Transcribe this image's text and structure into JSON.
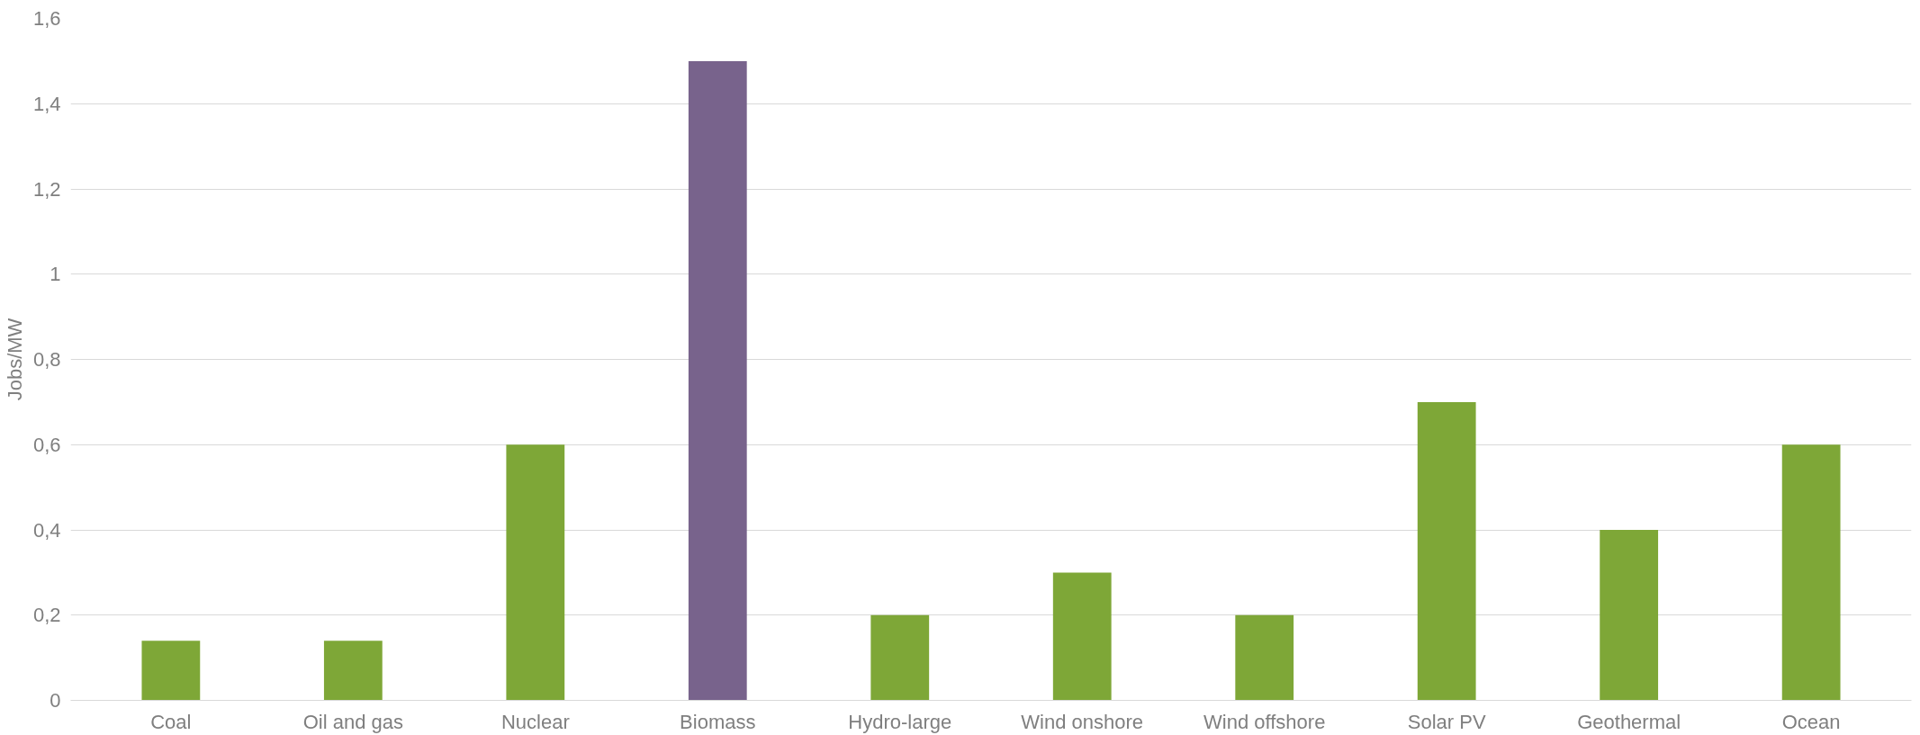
{
  "chart_data": {
    "type": "bar",
    "ylabel": "Jobs/MW",
    "categories": [
      "Coal",
      "Oil and gas",
      "Nuclear",
      "Biomass",
      "Hydro-large",
      "Wind onshore",
      "Wind offshore",
      "Solar PV",
      "Geothermal",
      "Ocean"
    ],
    "values": [
      0.14,
      0.14,
      0.6,
      1.5,
      0.2,
      0.3,
      0.2,
      0.7,
      0.4,
      0.6
    ],
    "colors": [
      "#7ea737",
      "#7ea737",
      "#7ea737",
      "#78638c",
      "#7ea737",
      "#7ea737",
      "#7ea737",
      "#7ea737",
      "#7ea737",
      "#7ea737"
    ],
    "ylim": [
      0,
      1.6
    ],
    "yticks": [
      {
        "value": 0,
        "label": "0"
      },
      {
        "value": 0.2,
        "label": "0,2"
      },
      {
        "value": 0.4,
        "label": "0,4"
      },
      {
        "value": 0.6,
        "label": "0,6"
      },
      {
        "value": 0.8,
        "label": "0,8"
      },
      {
        "value": 1,
        "label": "1"
      },
      {
        "value": 1.2,
        "label": "1,2"
      },
      {
        "value": 1.4,
        "label": "1,4"
      },
      {
        "value": 1.6,
        "label": "1,6"
      }
    ],
    "grid": "y"
  }
}
